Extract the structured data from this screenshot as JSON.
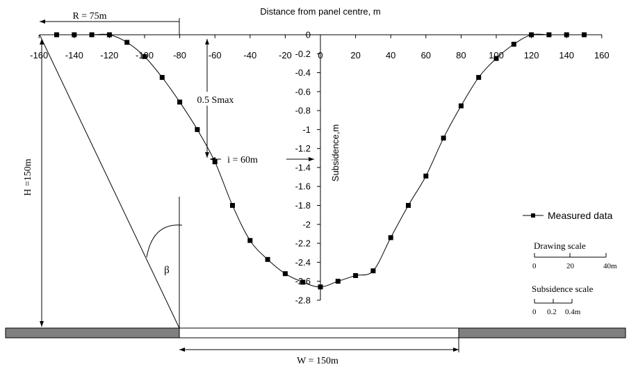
{
  "chart_data": {
    "type": "line",
    "title": "Distance from panel centre, m",
    "xlabel": "Distance from panel centre, m",
    "ylabel": "Subsidence,m",
    "xlim": [
      -160,
      160
    ],
    "ylim": [
      -2.8,
      0
    ],
    "x_ticks": [
      "-160",
      "-140",
      "-120",
      "-100",
      "-80",
      "-60",
      "-40",
      "-20",
      "0",
      "20",
      "40",
      "60",
      "80",
      "100",
      "120",
      "140",
      "160"
    ],
    "y_ticks": [
      "0",
      "-0.2",
      "-0.4",
      "-0.6",
      "-0.8",
      "-1",
      "-1.2",
      "-1.4",
      "-1.6",
      "-1.8",
      "-2",
      "-2.2",
      "-2.4",
      "-2.6",
      "-2.8"
    ],
    "grid": false,
    "legend_position": "right",
    "series": [
      {
        "name": "Measured data",
        "marker": "square",
        "x": [
          -150,
          -140,
          -130,
          -120,
          -110,
          -100,
          -90,
          -80,
          -70,
          -60,
          -50,
          -40,
          -30,
          -20,
          -10,
          0,
          10,
          20,
          30,
          40,
          50,
          60,
          70,
          80,
          90,
          100,
          110,
          120,
          130,
          140,
          150
        ],
        "values": [
          0,
          0,
          0,
          0,
          -0.08,
          -0.23,
          -0.45,
          -0.71,
          -1.0,
          -1.34,
          -1.8,
          -2.17,
          -2.37,
          -2.52,
          -2.61,
          -2.66,
          -2.6,
          -2.54,
          -2.49,
          -2.14,
          -1.8,
          -1.49,
          -1.09,
          -0.75,
          -0.45,
          -0.25,
          -0.1,
          0,
          0,
          0,
          0
        ]
      }
    ],
    "annotations": {
      "r_label": "R = 75m",
      "h_label": "H =150m",
      "half_smax_label": "0.5 Smax",
      "i_label": "i = 60m",
      "beta_label": "β",
      "w_label": "W = 150m"
    },
    "scales": {
      "drawing_title": "Drawing scale",
      "drawing_ticks": [
        "0",
        "20",
        "40m"
      ],
      "subsidence_title": "Subsidence scale",
      "subsidence_ticks": [
        "0",
        "0.2",
        "0.4m"
      ]
    }
  },
  "colors": {
    "line": "#000000",
    "marker": "#000000",
    "strata": "#808080",
    "panel": "#ffffff"
  }
}
